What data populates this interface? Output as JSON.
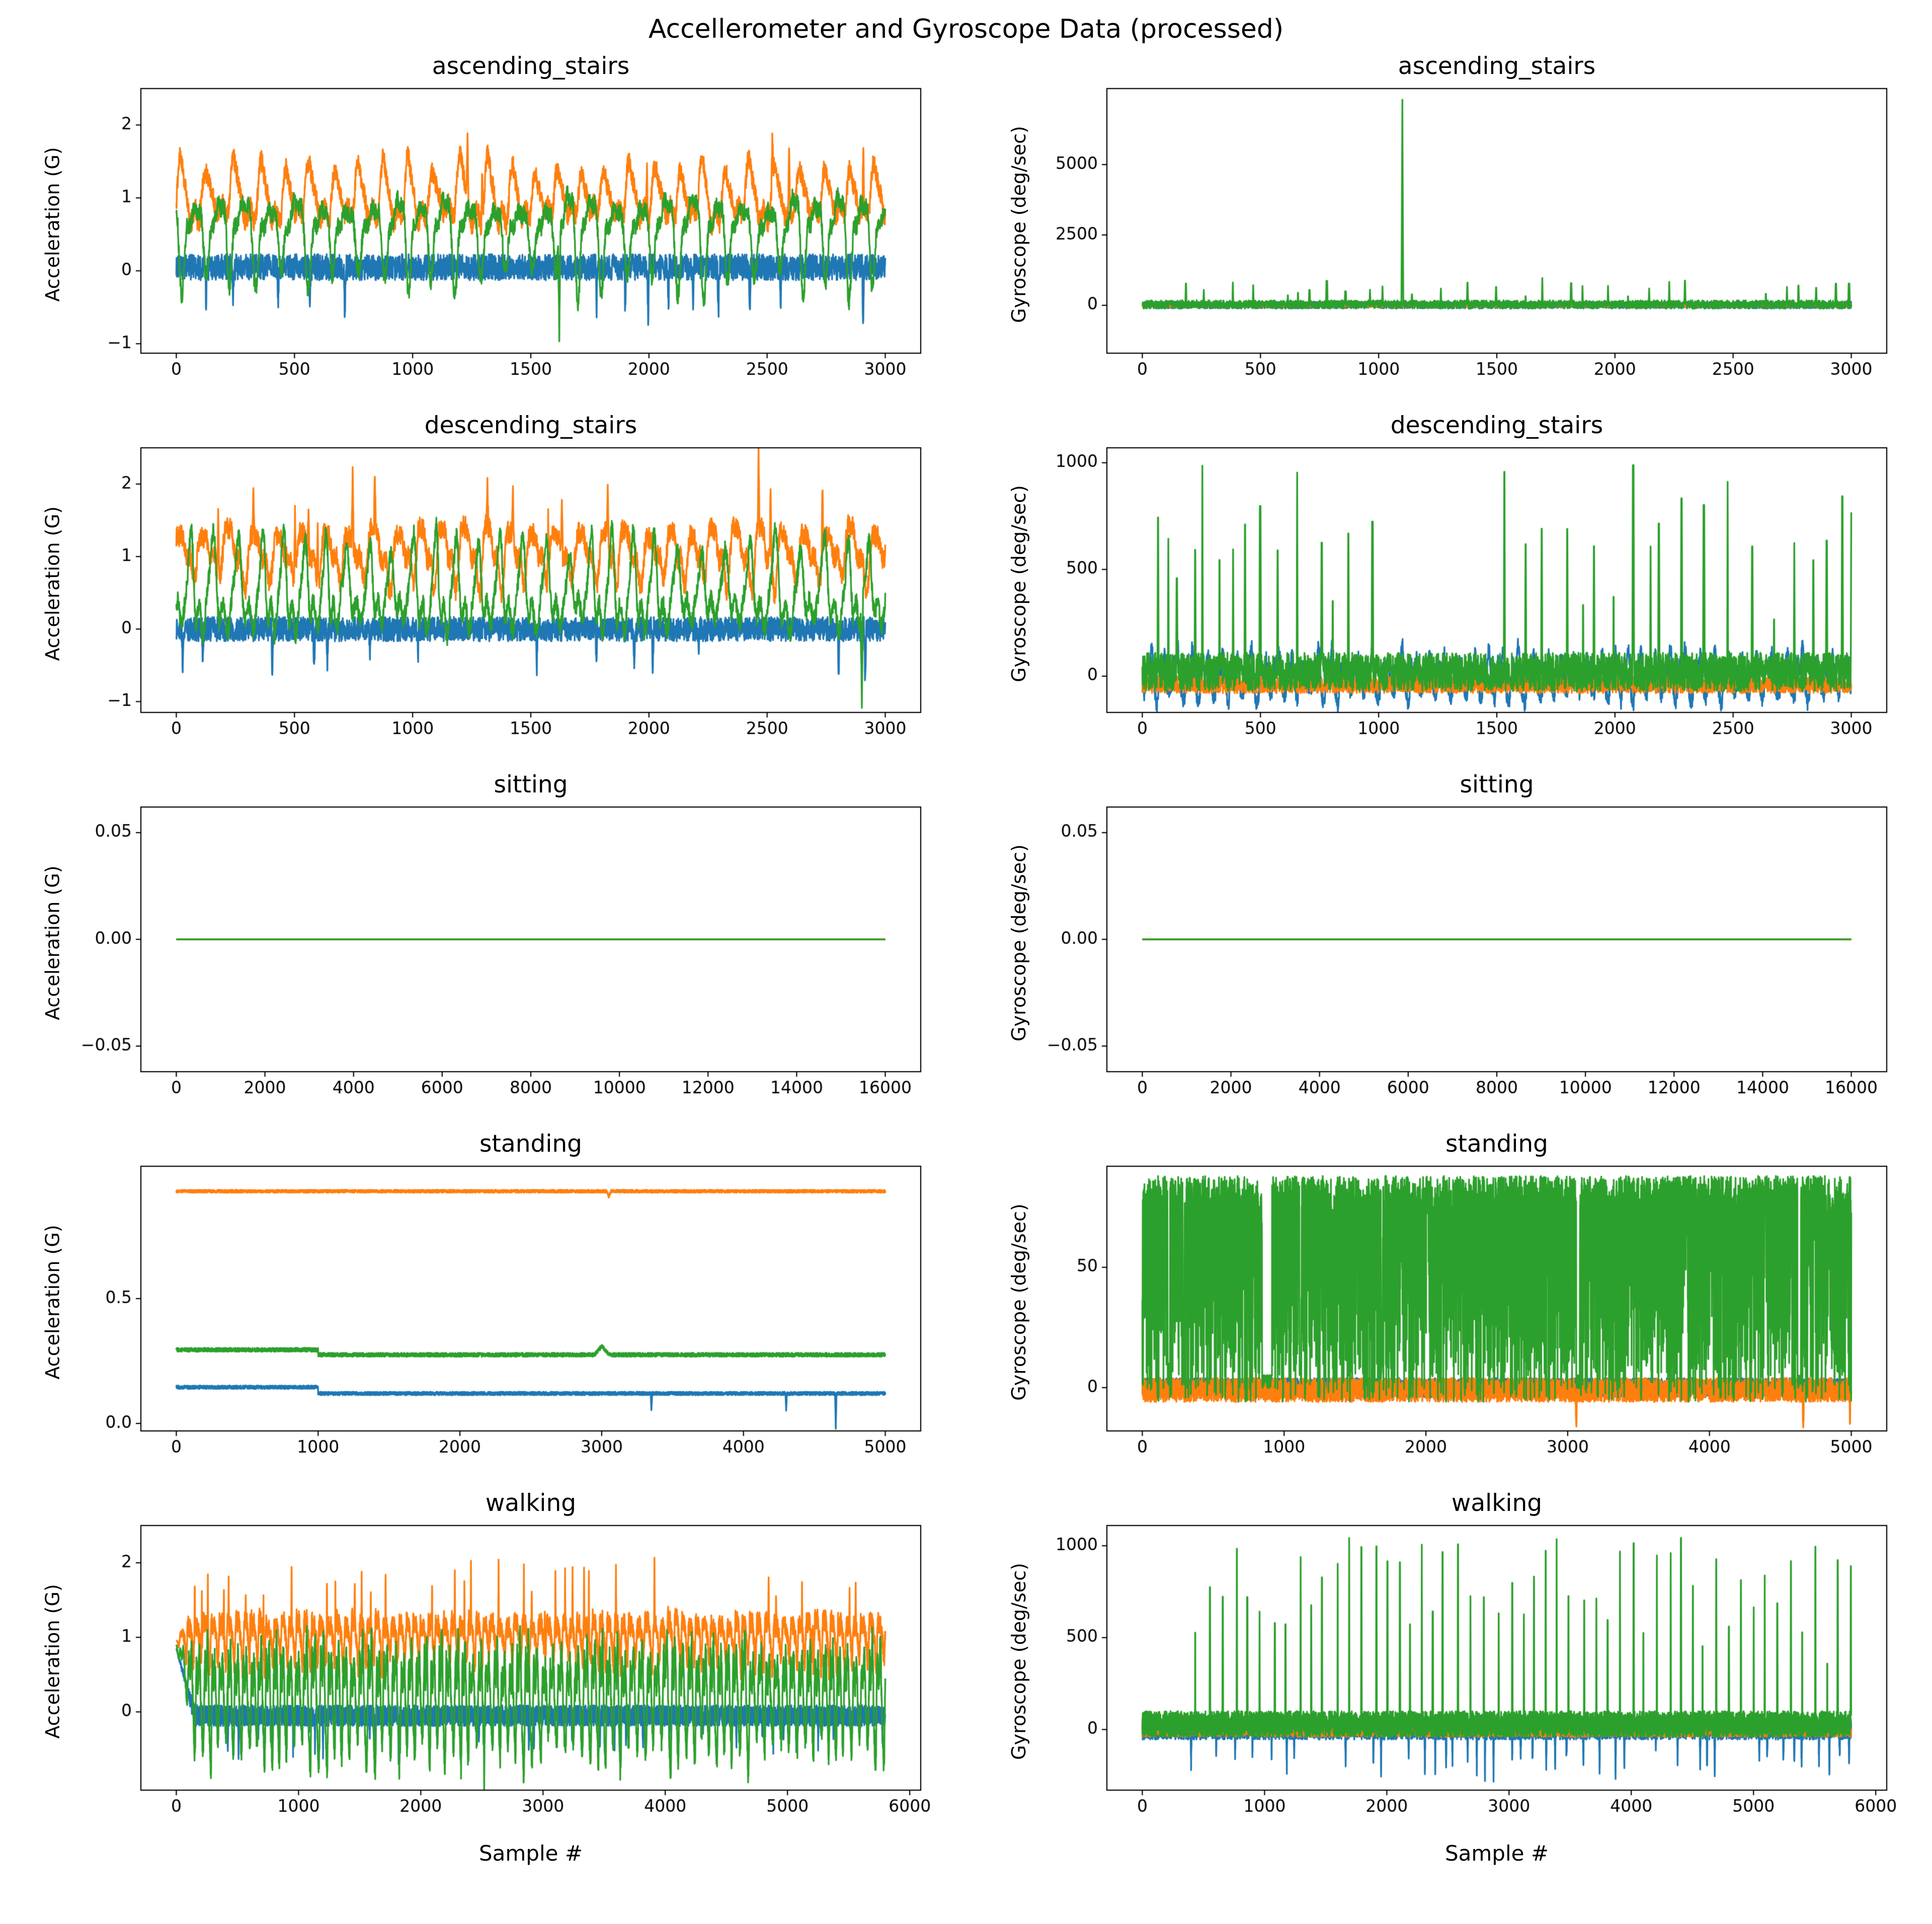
{
  "figure": {
    "title": "Accellerometer and Gyroscope Data (processed)",
    "background_color": "#ffffff",
    "text_color": "#000000",
    "series_colors": {
      "x_axis": "#1f77b4",
      "y_axis": "#ff7f0e",
      "z_axis": "#2ca02c"
    },
    "columns": [
      "Acceleration (G)",
      "Gyroscope (deg/sec)"
    ],
    "activities": [
      "ascending_stairs",
      "descending_stairs",
      "sitting",
      "standing",
      "walking"
    ],
    "xlabel": "Sample #"
  },
  "chart_data": [
    {
      "type": "line",
      "title": "ascending_stairs",
      "ylabel": "Acceleration (G)",
      "xlim": [
        -150,
        3150
      ],
      "ylim": [
        -1.13,
        2.5
      ],
      "xticks": [
        0,
        500,
        1000,
        1500,
        2000,
        2500,
        3000
      ],
      "xtick_labels": [
        "0",
        "500",
        "1000",
        "1500",
        "2000",
        "2500",
        "3000"
      ],
      "yticks": [
        -1,
        0,
        1,
        2
      ],
      "ytick_labels": [
        "−1",
        "0",
        "1",
        "2"
      ],
      "n": 3000,
      "x_start": 0,
      "x_end": 3000,
      "series": [
        {
          "name": "accel_x",
          "color": "#1f77b4",
          "gen": {
            "kind": "band",
            "base": 0.05,
            "noise": 0.18,
            "train": {
              "period": 105,
              "jitter": 45,
              "amp": 0.8,
              "sign": -1,
              "width": 3,
              "prob": 0.5
            }
          }
        },
        {
          "name": "accel_y",
          "color": "#ff7f0e",
          "gen": {
            "kind": "gait",
            "base": 1.0,
            "amp": 0.42,
            "period": 105,
            "noise": 0.14,
            "train": {
              "period": 105,
              "jitter": 55,
              "amp": 1.05,
              "sign": 1,
              "width": 3,
              "prob": 0.4
            }
          }
        },
        {
          "name": "accel_z",
          "color": "#2ca02c",
          "gen": {
            "kind": "gait",
            "base": 0.55,
            "amp": 0.6,
            "period": 105,
            "noise": 0.12,
            "events": [
              {
                "x": 1620,
                "amp": -1.35,
                "width": 4
              }
            ]
          }
        }
      ]
    },
    {
      "type": "line",
      "title": "ascending_stairs",
      "ylabel": "Gyroscope (deg/sec)",
      "xlim": [
        -150,
        3150
      ],
      "ylim": [
        -1700,
        7700
      ],
      "xticks": [
        0,
        500,
        1000,
        1500,
        2000,
        2500,
        3000
      ],
      "xtick_labels": [
        "0",
        "500",
        "1000",
        "1500",
        "2000",
        "2500",
        "3000"
      ],
      "yticks": [
        0,
        2500,
        5000
      ],
      "ytick_labels": [
        "0",
        "2500",
        "5000"
      ],
      "n": 3000,
      "x_start": 0,
      "x_end": 3000,
      "series": [
        {
          "name": "gyro_x",
          "color": "#1f77b4",
          "gen": {
            "kind": "band",
            "base": 10,
            "noise": 120
          }
        },
        {
          "name": "gyro_y",
          "color": "#ff7f0e",
          "gen": {
            "kind": "band",
            "base": 0,
            "noise": 60
          }
        },
        {
          "name": "gyro_z",
          "color": "#2ca02c",
          "gen": {
            "kind": "spiky",
            "base": 30,
            "noise": 150,
            "gapMin": 40,
            "gapMax": 150,
            "ampMin": 300,
            "ampMax": 1050,
            "width": 4,
            "quiet": [
              {
                "x0": 0,
                "x1": 160,
                "prob": 1.0
              },
              {
                "x0": 2330,
                "x1": 2580,
                "prob": 0.8
              }
            ],
            "events": [
              {
                "x": 1100,
                "amp": 7150,
                "width": 3
              }
            ]
          }
        }
      ]
    },
    {
      "type": "line",
      "title": "descending_stairs",
      "ylabel": "Acceleration (G)",
      "xlim": [
        -150,
        3150
      ],
      "ylim": [
        -1.15,
        2.5
      ],
      "xticks": [
        0,
        500,
        1000,
        1500,
        2000,
        2500,
        3000
      ],
      "xtick_labels": [
        "0",
        "500",
        "1000",
        "1500",
        "2000",
        "2500",
        "3000"
      ],
      "yticks": [
        -1,
        0,
        1,
        2
      ],
      "ytick_labels": [
        "−1",
        "0",
        "1",
        "2"
      ],
      "n": 3000,
      "x_start": 0,
      "x_end": 3000,
      "series": [
        {
          "name": "accel_x",
          "color": "#1f77b4",
          "gen": {
            "kind": "band",
            "base": 0.0,
            "noise": 0.17,
            "train": {
              "period": 95,
              "jitter": 40,
              "amp": 0.75,
              "sign": -1,
              "width": 3,
              "prob": 0.5
            }
          }
        },
        {
          "name": "accel_y",
          "color": "#ff7f0e",
          "gen": {
            "kind": "gait",
            "base": 1.05,
            "amp": 0.4,
            "period": 95,
            "noise": 0.15,
            "train": {
              "period": 95,
              "jitter": 60,
              "amp": 1.0,
              "sign": 1,
              "width": 3,
              "prob": 0.45
            }
          }
        },
        {
          "name": "accel_z",
          "color": "#2ca02c",
          "gen": {
            "kind": "gait",
            "base": 0.5,
            "amp": 0.6,
            "period": 95,
            "noise": 0.13,
            "events": [
              {
                "x": 2900,
                "amp": -1.35,
                "width": 4
              }
            ]
          }
        }
      ]
    },
    {
      "type": "line",
      "title": "descending_stairs",
      "ylabel": "Gyroscope (deg/sec)",
      "xlim": [
        -150,
        3150
      ],
      "ylim": [
        -170,
        1070
      ],
      "xticks": [
        0,
        500,
        1000,
        1500,
        2000,
        2500,
        3000
      ],
      "xtick_labels": [
        "0",
        "500",
        "1000",
        "1500",
        "2000",
        "2500",
        "3000"
      ],
      "yticks": [
        0,
        500,
        1000
      ],
      "ytick_labels": [
        "0",
        "500",
        "1000"
      ],
      "n": 3000,
      "x_start": 0,
      "x_end": 3000,
      "series": [
        {
          "name": "gyro_x",
          "color": "#1f77b4",
          "gen": {
            "kind": "gait",
            "base": 0,
            "amp": 110,
            "period": 60,
            "noise": 40
          }
        },
        {
          "name": "gyro_y",
          "color": "#ff7f0e",
          "gen": {
            "kind": "band",
            "base": -40,
            "noise": 40
          }
        },
        {
          "name": "gyro_z",
          "color": "#2ca02c",
          "gen": {
            "kind": "spiky",
            "base": 20,
            "noise": 90,
            "gapMin": 28,
            "gapMax": 110,
            "ampMin": 450,
            "ampMax": 1000,
            "width": 4,
            "quiet": [
              {
                "x0": 1050,
                "x1": 1480,
                "prob": 0.7
              }
            ]
          }
        }
      ]
    },
    {
      "type": "line",
      "title": "sitting",
      "ylabel": "Acceleration (G)",
      "xlim": [
        -800,
        16800
      ],
      "ylim": [
        -0.062,
        0.062
      ],
      "xticks": [
        0,
        2000,
        4000,
        6000,
        8000,
        10000,
        12000,
        14000,
        16000
      ],
      "xtick_labels": [
        "0",
        "2000",
        "4000",
        "6000",
        "8000",
        "10000",
        "12000",
        "14000",
        "16000"
      ],
      "yticks": [
        -0.05,
        0,
        0.05
      ],
      "ytick_labels": [
        "−0.05",
        "0.00",
        "0.05"
      ],
      "n": 100,
      "x_start": 0,
      "x_end": 16000,
      "series": [
        {
          "name": "accel_x",
          "color": "#1f77b4",
          "gen": {
            "kind": "flat",
            "base": 0
          }
        },
        {
          "name": "accel_y",
          "color": "#ff7f0e",
          "gen": {
            "kind": "flat",
            "base": 0
          }
        },
        {
          "name": "accel_z",
          "color": "#2ca02c",
          "gen": {
            "kind": "flat",
            "base": 0
          }
        }
      ]
    },
    {
      "type": "line",
      "title": "sitting",
      "ylabel": "Gyroscope (deg/sec)",
      "xlim": [
        -800,
        16800
      ],
      "ylim": [
        -0.062,
        0.062
      ],
      "xticks": [
        0,
        2000,
        4000,
        6000,
        8000,
        10000,
        12000,
        14000,
        16000
      ],
      "xtick_labels": [
        "0",
        "2000",
        "4000",
        "6000",
        "8000",
        "10000",
        "12000",
        "14000",
        "16000"
      ],
      "yticks": [
        -0.05,
        0,
        0.05
      ],
      "ytick_labels": [
        "−0.05",
        "0.00",
        "0.05"
      ],
      "n": 100,
      "x_start": 0,
      "x_end": 16000,
      "series": [
        {
          "name": "gyro_x",
          "color": "#1f77b4",
          "gen": {
            "kind": "flat",
            "base": 0
          }
        },
        {
          "name": "gyro_y",
          "color": "#ff7f0e",
          "gen": {
            "kind": "flat",
            "base": 0
          }
        },
        {
          "name": "gyro_z",
          "color": "#2ca02c",
          "gen": {
            "kind": "flat",
            "base": 0
          }
        }
      ]
    },
    {
      "type": "line",
      "title": "standing",
      "ylabel": "Acceleration (G)",
      "xlim": [
        -250,
        5250
      ],
      "ylim": [
        -0.03,
        1.03
      ],
      "xticks": [
        0,
        1000,
        2000,
        3000,
        4000,
        5000
      ],
      "xtick_labels": [
        "0",
        "1000",
        "2000",
        "3000",
        "4000",
        "5000"
      ],
      "yticks": [
        0,
        0.5
      ],
      "ytick_labels": [
        "0.0",
        "0.5"
      ],
      "n": 5000,
      "x_start": 0,
      "x_end": 5000,
      "series": [
        {
          "name": "accel_x",
          "color": "#1f77b4",
          "gen": {
            "kind": "band",
            "base": 0.12,
            "noise": 0.007,
            "step": {
              "x": 1000,
              "delta": 0.025
            },
            "events": [
              {
                "x": 3350,
                "amp": -0.07,
                "width": 4
              },
              {
                "x": 4300,
                "amp": -0.07,
                "width": 4
              },
              {
                "x": 4650,
                "amp": -0.14,
                "width": 4
              }
            ]
          }
        },
        {
          "name": "accel_y",
          "color": "#ff7f0e",
          "gen": {
            "kind": "band",
            "base": 0.93,
            "noise": 0.006,
            "events": [
              {
                "x": 3050,
                "amp": -0.02,
                "width": 15
              }
            ]
          }
        },
        {
          "name": "accel_z",
          "color": "#2ca02c",
          "gen": {
            "kind": "band",
            "base": 0.275,
            "noise": 0.008,
            "step": {
              "x": 1000,
              "delta": 0.02
            },
            "events": [
              {
                "x": 3000,
                "amp": 0.035,
                "width": 50
              }
            ]
          }
        }
      ]
    },
    {
      "type": "line",
      "title": "standing",
      "ylabel": "Gyroscope (deg/sec)",
      "xlim": [
        -250,
        5250
      ],
      "ylim": [
        -18,
        92
      ],
      "xticks": [
        0,
        1000,
        2000,
        3000,
        4000,
        5000
      ],
      "xtick_labels": [
        "0",
        "1000",
        "2000",
        "3000",
        "4000",
        "5000"
      ],
      "yticks": [
        0,
        50
      ],
      "ytick_labels": [
        "0",
        "50"
      ],
      "n": 5000,
      "x_start": 0,
      "x_end": 5000,
      "series": [
        {
          "name": "gyro_x",
          "color": "#1f77b4",
          "gen": {
            "kind": "band",
            "base": 0,
            "noise": 4
          }
        },
        {
          "name": "gyro_y",
          "color": "#ff7f0e",
          "gen": {
            "kind": "band",
            "base": -1,
            "noise": 5,
            "events": [
              {
                "x": 3060,
                "amp": -15,
                "width": 5
              },
              {
                "x": 4660,
                "amp": -17,
                "width": 5
              },
              {
                "x": 4990,
                "amp": -15,
                "width": 4
              }
            ]
          }
        },
        {
          "name": "gyro_z",
          "color": "#2ca02c",
          "gen": {
            "kind": "dense",
            "lo": -6,
            "hi": 88,
            "microGapProb": 0.0015,
            "gaps": [
              {
                "x": 845,
                "w": 70
              },
              {
                "x": 3060,
                "w": 25
              },
              {
                "x": 4620,
                "w": 25
              }
            ]
          }
        }
      ]
    },
    {
      "type": "line",
      "title": "walking",
      "ylabel": "Acceleration (G)",
      "xlabel": "Sample #",
      "xlim": [
        -290,
        6090
      ],
      "ylim": [
        -1.05,
        2.5
      ],
      "xticks": [
        0,
        1000,
        2000,
        3000,
        4000,
        5000,
        6000
      ],
      "xtick_labels": [
        "0",
        "1000",
        "2000",
        "3000",
        "4000",
        "5000",
        "6000"
      ],
      "yticks": [
        0,
        1,
        2
      ],
      "ytick_labels": [
        "0",
        "1",
        "2"
      ],
      "n": 5800,
      "x_start": 0,
      "x_end": 5800,
      "series": [
        {
          "name": "accel_x",
          "color": "#1f77b4",
          "gen": {
            "kind": "band",
            "base": -0.05,
            "noise": 0.14,
            "train": {
              "period": 65,
              "jitter": 25,
              "amp": 0.5,
              "sign": -1,
              "width": 3,
              "prob": 0.45
            },
            "settle": {
              "from": 0.85,
              "len": 150
            }
          }
        },
        {
          "name": "accel_y",
          "color": "#ff7f0e",
          "gen": {
            "kind": "gait",
            "base": 1.02,
            "amp": 0.3,
            "period": 65,
            "noise": 0.13,
            "train": {
              "period": 65,
              "jitter": 30,
              "amp": 0.85,
              "sign": 1,
              "width": 2,
              "prob": 0.4
            },
            "settle": {
              "from": 0.95,
              "len": 100
            }
          }
        },
        {
          "name": "accel_z",
          "color": "#2ca02c",
          "gen": {
            "kind": "gait",
            "base": 0.22,
            "amp": 0.75,
            "period": 65,
            "noise": 0.15,
            "train": {
              "period": 65,
              "jitter": 35,
              "amp": 0.5,
              "sign": -1,
              "width": 2,
              "prob": 0.2
            },
            "settle": {
              "from": 0.9,
              "len": 150
            }
          }
        }
      ]
    },
    {
      "type": "line",
      "title": "walking",
      "ylabel": "Gyroscope (deg/sec)",
      "xlabel": "Sample #",
      "xlim": [
        -290,
        6090
      ],
      "ylim": [
        -330,
        1110
      ],
      "xticks": [
        0,
        1000,
        2000,
        3000,
        4000,
        5000,
        6000
      ],
      "xtick_labels": [
        "0",
        "1000",
        "2000",
        "3000",
        "4000",
        "5000",
        "6000"
      ],
      "yticks": [
        0,
        500,
        1000
      ],
      "ytick_labels": [
        "0",
        "500",
        "1000"
      ],
      "n": 5800,
      "x_start": 0,
      "x_end": 5800,
      "series": [
        {
          "name": "gyro_x",
          "color": "#1f77b4",
          "gen": {
            "kind": "band",
            "base": 0,
            "noise": 55,
            "train": {
              "period": 70,
              "jitter": 25,
              "amp": 230,
              "sign": -1,
              "width": 3,
              "prob": 0.5
            }
          }
        },
        {
          "name": "gyro_y",
          "color": "#ff7f0e",
          "gen": {
            "kind": "band",
            "base": 5,
            "noise": 45
          }
        },
        {
          "name": "gyro_z",
          "color": "#2ca02c",
          "gen": {
            "kind": "spiky",
            "base": 30,
            "noise": 70,
            "gapMin": 80,
            "gapMax": 130,
            "ampMin": 550,
            "ampMax": 1050,
            "width": 4,
            "quiet": [
              {
                "x0": 0,
                "x1": 380,
                "prob": 1.0
              }
            ]
          }
        }
      ]
    }
  ]
}
